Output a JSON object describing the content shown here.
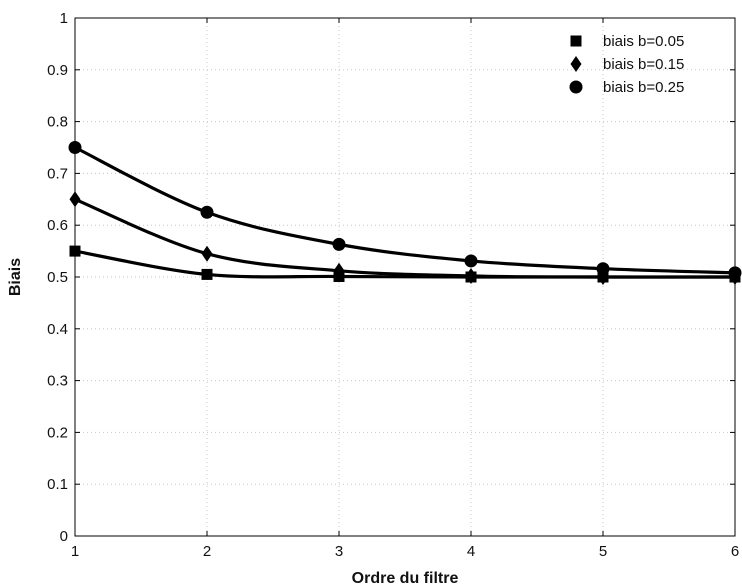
{
  "chart_data": {
    "type": "line",
    "xlabel": "Ordre du filtre",
    "ylabel": "Biais",
    "xlim": [
      1,
      6
    ],
    "ylim": [
      0,
      1
    ],
    "x": [
      1,
      2,
      3,
      4,
      5,
      6
    ],
    "xticks": [
      "1",
      "2",
      "3",
      "4",
      "5",
      "6"
    ],
    "yticks": [
      "0",
      "0.1",
      "0.2",
      "0.3",
      "0.4",
      "0.5",
      "0.6",
      "0.7",
      "0.8",
      "0.9",
      "1"
    ],
    "grid": true,
    "legend_position": "top-right",
    "series": [
      {
        "name": "biais b=0.05",
        "marker": "square",
        "values": [
          0.55,
          0.505,
          0.501,
          0.5,
          0.5,
          0.5
        ]
      },
      {
        "name": "biais b=0.15",
        "marker": "diamond",
        "values": [
          0.65,
          0.545,
          0.512,
          0.502,
          0.5,
          0.5
        ]
      },
      {
        "name": "biais b=0.25",
        "marker": "circle",
        "values": [
          0.75,
          0.625,
          0.563,
          0.531,
          0.516,
          0.508
        ]
      }
    ],
    "colors": {
      "line": "#000000",
      "grid": "#c8c8c8"
    }
  }
}
